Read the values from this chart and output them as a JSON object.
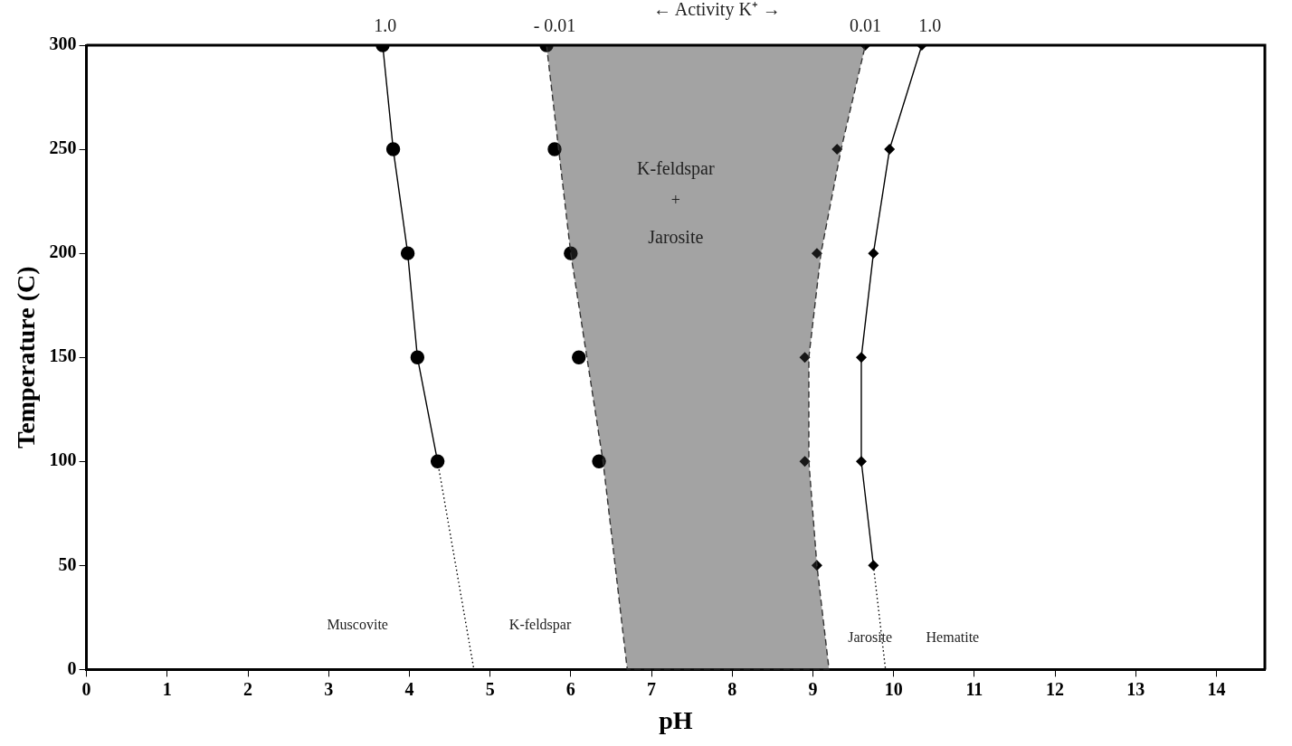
{
  "chart_data": {
    "type": "line",
    "xlabel": "pH",
    "ylabel": "Temperature (C)",
    "xlim": [
      0,
      14.6
    ],
    "xticks": [
      0,
      1,
      2,
      3,
      4,
      5,
      6,
      7,
      8,
      9,
      10,
      11,
      12,
      13,
      14
    ],
    "ylim": [
      0,
      300
    ],
    "yticks": [
      0,
      50,
      100,
      150,
      200,
      250,
      300
    ],
    "grid": false,
    "legend": false,
    "series": [
      {
        "type": "line",
        "marker": "circle",
        "line_style": "solid",
        "color": "#000000",
        "x": [
          3.67,
          3.8,
          3.98,
          4.1,
          4.35
        ],
        "values": [
          300,
          250,
          200,
          150,
          100
        ]
      },
      {
        "type": "line",
        "marker": "none",
        "line_style": "dotted",
        "color": "#000000",
        "x": [
          4.35,
          4.8
        ],
        "values": [
          100,
          0
        ]
      },
      {
        "type": "area",
        "marker": "none",
        "line_style": "dashed",
        "color": "#333333",
        "x": [
          5.7,
          5.85,
          6.0,
          6.2,
          6.4,
          6.7,
          9.2,
          9.05,
          8.95,
          8.95,
          9.1,
          9.35,
          9.65
        ],
        "values": [
          300,
          250,
          200,
          150,
          100,
          0,
          0,
          50,
          100,
          150,
          200,
          250,
          300
        ]
      },
      {
        "type": "scatter",
        "marker": "circle",
        "color": "#000000",
        "x": [
          5.7,
          5.8,
          6.0,
          6.1,
          6.35
        ],
        "values": [
          300,
          250,
          200,
          150,
          100
        ]
      },
      {
        "type": "scatter",
        "marker": "diamond",
        "color": "#000000",
        "x": [
          9.65,
          9.3,
          9.05,
          8.9,
          8.9,
          9.05
        ],
        "values": [
          300,
          250,
          200,
          150,
          100,
          50
        ]
      },
      {
        "type": "line",
        "marker": "diamond",
        "line_style": "solid",
        "color": "#000000",
        "x": [
          10.35,
          9.95,
          9.75,
          9.6,
          9.6,
          9.75
        ],
        "values": [
          300,
          250,
          200,
          150,
          100,
          50
        ]
      },
      {
        "type": "line",
        "marker": "none",
        "line_style": "dotted",
        "color": "#000000",
        "x": [
          9.75,
          9.9
        ],
        "values": [
          50,
          0
        ]
      }
    ],
    "annotations": [
      {
        "text": "1.0",
        "x": 3.7,
        "y": 300
      },
      {
        "text": "- 0.01",
        "x": 5.8,
        "y": 300
      },
      "← Activity K⁺ →",
      {
        "text": "0.01",
        "x": 9.65,
        "y": 300
      },
      {
        "text": "1.0",
        "x": 10.45,
        "y": 300
      },
      "K-feldspar",
      "+",
      "Jarosite",
      "Muscovite",
      "K-feldspar",
      "Jarosite",
      "Hematite"
    ]
  }
}
